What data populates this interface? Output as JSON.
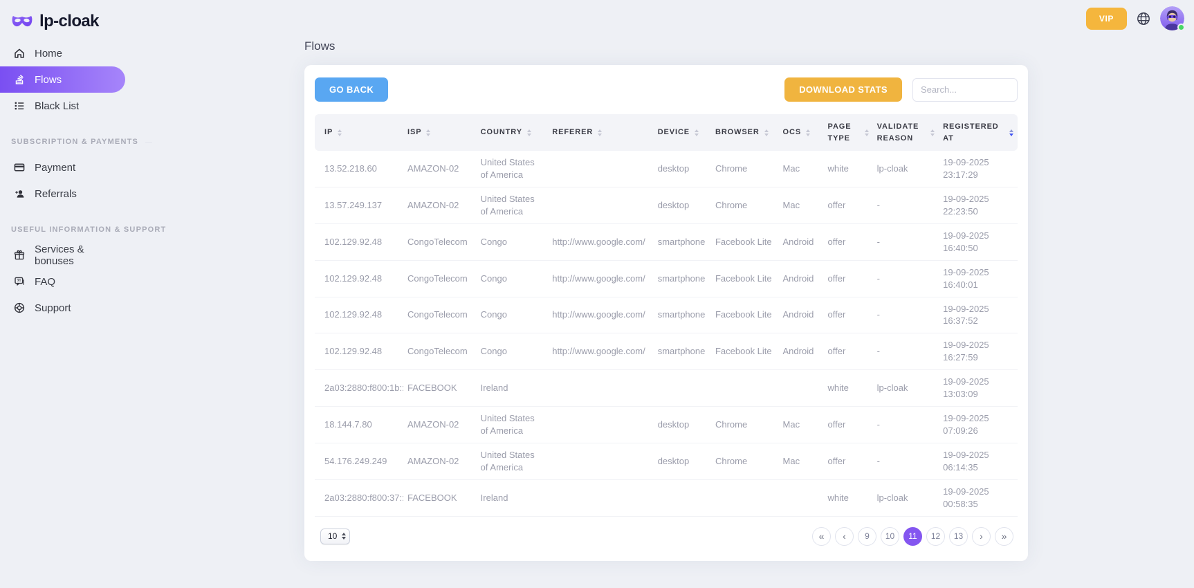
{
  "brand": {
    "name": "lp-cloak"
  },
  "topbar": {
    "vip_label": "VIP"
  },
  "sidebar": {
    "items": [
      {
        "label": "Home",
        "icon": "home-icon",
        "active": false
      },
      {
        "label": "Flows",
        "icon": "stack-icon",
        "active": true
      },
      {
        "label": "Black List",
        "icon": "list-icon",
        "active": false
      }
    ],
    "sections": [
      {
        "title": "SUBSCRIPTION & PAYMENTS",
        "items": [
          {
            "label": "Payment",
            "icon": "credit-card-icon"
          },
          {
            "label": "Referrals",
            "icon": "add-user-icon"
          }
        ]
      },
      {
        "title": "USEFUL INFORMATION & SUPPORT",
        "items": [
          {
            "label": "Services & bonuses",
            "icon": "gift-icon"
          },
          {
            "label": "FAQ",
            "icon": "chat-question-icon"
          },
          {
            "label": "Support",
            "icon": "lifebuoy-icon"
          }
        ]
      }
    ]
  },
  "page": {
    "title": "Flows"
  },
  "toolbar": {
    "go_back_label": "GO BACK",
    "download_stats_label": "DOWNLOAD STATS",
    "search_placeholder": "Search..."
  },
  "table": {
    "columns": [
      {
        "label": "IP",
        "sorted": false
      },
      {
        "label": "ISP",
        "sorted": false
      },
      {
        "label": "COUNTRY",
        "sorted": false
      },
      {
        "label": "REFERER",
        "sorted": false
      },
      {
        "label": "DEVICE",
        "sorted": false
      },
      {
        "label": "BROWSER",
        "sorted": false
      },
      {
        "label": "OCS",
        "sorted": false
      },
      {
        "label": "PAGE TYPE",
        "sorted": false
      },
      {
        "label": "VALIDATE REASON",
        "sorted": false
      },
      {
        "label": "REGISTERED AT",
        "sorted": true
      }
    ],
    "rows": [
      {
        "ip": "13.52.218.60",
        "isp": "AMAZON-02",
        "country": "United States of America",
        "referer": "",
        "device": "desktop",
        "browser": "Chrome",
        "ocs": "Mac",
        "page_type": "white",
        "validate_reason": "lp-cloak",
        "registered_at": "19-09-2025 23:17:29"
      },
      {
        "ip": "13.57.249.137",
        "isp": "AMAZON-02",
        "country": "United States of America",
        "referer": "",
        "device": "desktop",
        "browser": "Chrome",
        "ocs": "Mac",
        "page_type": "offer",
        "validate_reason": "-",
        "registered_at": "19-09-2025 22:23:50"
      },
      {
        "ip": "102.129.92.48",
        "isp": "CongoTelecom",
        "country": "Congo",
        "referer": "http://www.google.com/",
        "device": "smartphone",
        "browser": "Facebook Lite",
        "ocs": "Android",
        "page_type": "offer",
        "validate_reason": "-",
        "registered_at": "19-09-2025 16:40:50"
      },
      {
        "ip": "102.129.92.48",
        "isp": "CongoTelecom",
        "country": "Congo",
        "referer": "http://www.google.com/",
        "device": "smartphone",
        "browser": "Facebook Lite",
        "ocs": "Android",
        "page_type": "offer",
        "validate_reason": "-",
        "registered_at": "19-09-2025 16:40:01"
      },
      {
        "ip": "102.129.92.48",
        "isp": "CongoTelecom",
        "country": "Congo",
        "referer": "http://www.google.com/",
        "device": "smartphone",
        "browser": "Facebook Lite",
        "ocs": "Android",
        "page_type": "offer",
        "validate_reason": "-",
        "registered_at": "19-09-2025 16:37:52"
      },
      {
        "ip": "102.129.92.48",
        "isp": "CongoTelecom",
        "country": "Congo",
        "referer": "http://www.google.com/",
        "device": "smartphone",
        "browser": "Facebook Lite",
        "ocs": "Android",
        "page_type": "offer",
        "validate_reason": "-",
        "registered_at": "19-09-2025 16:27:59"
      },
      {
        "ip": "2a03:2880:f800:1b::",
        "isp": "FACEBOOK",
        "country": "Ireland",
        "referer": "",
        "device": "",
        "browser": "",
        "ocs": "",
        "page_type": "white",
        "validate_reason": "lp-cloak",
        "registered_at": "19-09-2025 13:03:09"
      },
      {
        "ip": "18.144.7.80",
        "isp": "AMAZON-02",
        "country": "United States of America",
        "referer": "",
        "device": "desktop",
        "browser": "Chrome",
        "ocs": "Mac",
        "page_type": "offer",
        "validate_reason": "-",
        "registered_at": "19-09-2025 07:09:26"
      },
      {
        "ip": "54.176.249.249",
        "isp": "AMAZON-02",
        "country": "United States of America",
        "referer": "",
        "device": "desktop",
        "browser": "Chrome",
        "ocs": "Mac",
        "page_type": "offer",
        "validate_reason": "-",
        "registered_at": "19-09-2025 06:14:35"
      },
      {
        "ip": "2a03:2880:f800:37::",
        "isp": "FACEBOOK",
        "country": "Ireland",
        "referer": "",
        "device": "",
        "browser": "",
        "ocs": "",
        "page_type": "white",
        "validate_reason": "lp-cloak",
        "registered_at": "19-09-2025 00:58:35"
      }
    ]
  },
  "pagination": {
    "page_size": "10",
    "buttons": [
      {
        "label": "«",
        "kind": "first",
        "active": false
      },
      {
        "label": "‹",
        "kind": "prev",
        "active": false
      },
      {
        "label": "9",
        "kind": "page",
        "active": false
      },
      {
        "label": "10",
        "kind": "page",
        "active": false
      },
      {
        "label": "11",
        "kind": "page",
        "active": true
      },
      {
        "label": "12",
        "kind": "page",
        "active": false
      },
      {
        "label": "13",
        "kind": "page",
        "active": false
      },
      {
        "label": "›",
        "kind": "next",
        "active": false
      },
      {
        "label": "»",
        "kind": "last",
        "active": false
      }
    ]
  },
  "colors": {
    "accent_purple": "#8456f0",
    "sidebar_active_gradient_start": "#7a4ff2",
    "sidebar_active_gradient_end": "#a685fa",
    "vip_button": "#f5b63d",
    "go_back_button": "#59a7f2",
    "download_button": "#f0b43f",
    "sorted_arrow": "#4053f4",
    "online_dot": "#47d764"
  }
}
